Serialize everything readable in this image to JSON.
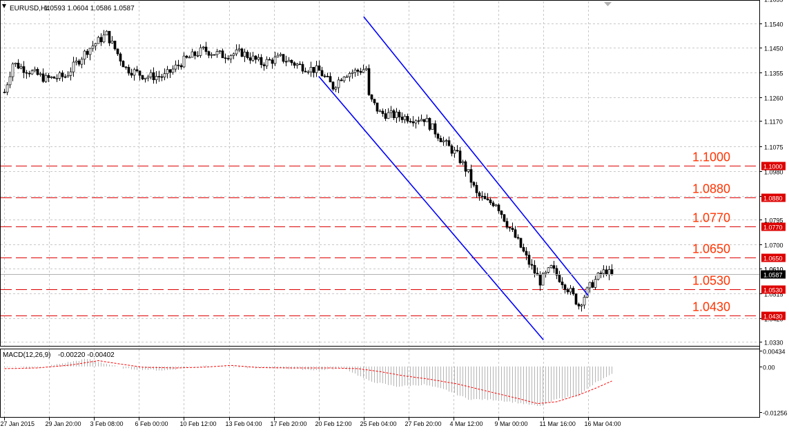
{
  "header": {
    "symbol_title": "EURUSD,H4",
    "ohlc": "1.0593 1.0604 1.0586 1.0587"
  },
  "macd": {
    "label": "MACD(12,26,9)",
    "values": "-0.00220 -0.00402",
    "axis_ticks": [
      {
        "value": 0.00434,
        "label": "0.00434"
      },
      {
        "value": 0.0,
        "label": "0.00"
      },
      {
        "value": -0.01256,
        "label": "-0.01256"
      }
    ]
  },
  "colors": {
    "background": "#ffffff",
    "grid": "#c8c8c8",
    "candles": "#000000",
    "channel": "#0000ff",
    "levels": "#dd0000",
    "level_text": "#ff3300",
    "histogram": "#b4b4b4",
    "signal": "#ff0000"
  },
  "chart_data": {
    "type": "candlestick",
    "symbol": "EURUSD",
    "timeframe": "H4",
    "ylim": [
      1.0315,
      1.1625
    ],
    "y_ticks": [
      "1.1635",
      "1.1540",
      "1.1450",
      "1.1355",
      "1.1260",
      "1.1170",
      "1.1075",
      "1.0980",
      "1.0885",
      "1.0795",
      "1.0700",
      "1.0610",
      "1.0515",
      "1.0420",
      "1.0330"
    ],
    "x_ticks": [
      "27 Jan 2015",
      "29 Jan 20:00",
      "3 Feb 08:00",
      "6 Feb 00:00",
      "10 Feb 12:00",
      "13 Feb 04:00",
      "17 Feb 20:00",
      "20 Feb 12:00",
      "25 Feb 04:00",
      "27 Feb 20:00",
      "4 Mar 12:00",
      "9 Mar 00:00",
      "11 Mar 16:00",
      "16 Mar 04:00"
    ],
    "current_price": {
      "value": 1.0587,
      "label": "1.0587"
    },
    "current_price_label2": "1.0610",
    "levels": [
      {
        "value": 1.1,
        "label": "1.1000",
        "tag": "1.1000"
      },
      {
        "value": 1.088,
        "label": "1.0880",
        "tag": "1.0880"
      },
      {
        "value": 1.077,
        "label": "1.0770",
        "tag": "1.0770"
      },
      {
        "value": 1.065,
        "label": "1.0650",
        "tag": "1.0650"
      },
      {
        "value": 1.053,
        "label": "1.0530",
        "tag": "1.0530"
      },
      {
        "value": 1.043,
        "label": "1.0430",
        "tag": "1.0430"
      }
    ],
    "channel": {
      "upper": {
        "from": [
          "25 Feb 04:00",
          1.1567
        ],
        "to": [
          "16 Mar 04:00",
          1.0506
        ]
      },
      "lower": {
        "from": [
          "20 Feb 12:00",
          1.134
        ],
        "to": [
          "11 Mar 16:00",
          1.0338
        ]
      }
    },
    "price_path": [
      [
        0,
        1.128
      ],
      [
        3,
        1.139
      ],
      [
        9,
        1.136
      ],
      [
        15,
        1.133
      ],
      [
        22,
        1.134
      ],
      [
        30,
        1.144
      ],
      [
        37,
        1.15
      ],
      [
        44,
        1.137
      ],
      [
        51,
        1.134
      ],
      [
        58,
        1.134
      ],
      [
        65,
        1.14
      ],
      [
        72,
        1.144
      ],
      [
        79,
        1.142
      ],
      [
        86,
        1.143
      ],
      [
        93,
        1.139
      ],
      [
        100,
        1.141
      ],
      [
        107,
        1.138
      ],
      [
        114,
        1.136
      ],
      [
        119,
        1.13
      ],
      [
        123,
        1.135
      ],
      [
        128,
        1.136
      ],
      [
        131,
        1.137
      ],
      [
        132,
        1.126
      ],
      [
        136,
        1.12
      ],
      [
        142,
        1.119
      ],
      [
        148,
        1.118
      ],
      [
        152,
        1.118
      ],
      [
        156,
        1.113
      ],
      [
        160,
        1.108
      ],
      [
        164,
        1.104
      ],
      [
        168,
        1.097
      ],
      [
        171,
        1.089
      ],
      [
        175,
        1.086
      ],
      [
        178,
        1.086
      ],
      [
        182,
        1.078
      ],
      [
        186,
        1.071
      ],
      [
        190,
        1.063
      ],
      [
        194,
        1.056
      ],
      [
        198,
        1.061
      ],
      [
        202,
        1.056
      ],
      [
        205,
        1.052
      ],
      [
        208,
        1.047
      ],
      [
        212,
        1.054
      ],
      [
        216,
        1.059
      ],
      [
        218,
        1.06
      ],
      [
        220,
        1.058
      ]
    ],
    "macd_histogram_path": [
      [
        0,
        0.0
      ],
      [
        12,
        -0.0004
      ],
      [
        30,
        0.0021
      ],
      [
        44,
        -0.0006
      ],
      [
        58,
        -0.0011
      ],
      [
        72,
        0.0003
      ],
      [
        86,
        -0.0003
      ],
      [
        100,
        -0.0005
      ],
      [
        114,
        -0.001
      ],
      [
        123,
        -0.0004
      ],
      [
        132,
        -0.004
      ],
      [
        142,
        -0.0055
      ],
      [
        152,
        -0.005
      ],
      [
        160,
        -0.0065
      ],
      [
        168,
        -0.009
      ],
      [
        178,
        -0.0092
      ],
      [
        186,
        -0.01
      ],
      [
        194,
        -0.011
      ],
      [
        200,
        -0.009
      ],
      [
        208,
        -0.008
      ],
      [
        214,
        -0.0045
      ],
      [
        220,
        -0.0022
      ]
    ],
    "macd_signal_path": [
      [
        0,
        -0.0006
      ],
      [
        12,
        -0.0004
      ],
      [
        24,
        0.0004
      ],
      [
        34,
        0.0016
      ],
      [
        40,
        0.0009
      ],
      [
        50,
        -0.0002
      ],
      [
        62,
        -0.0004
      ],
      [
        72,
        -0.0002
      ],
      [
        82,
        0.0003
      ],
      [
        92,
        -0.0003
      ],
      [
        104,
        -0.0004
      ],
      [
        118,
        -0.0004
      ],
      [
        128,
        -0.0006
      ],
      [
        136,
        -0.0014
      ],
      [
        144,
        -0.0025
      ],
      [
        154,
        -0.0035
      ],
      [
        164,
        -0.0048
      ],
      [
        176,
        -0.007
      ],
      [
        186,
        -0.0088
      ],
      [
        193,
        -0.0102
      ],
      [
        200,
        -0.0097
      ],
      [
        208,
        -0.0078
      ],
      [
        214,
        -0.006
      ],
      [
        220,
        -0.004
      ]
    ]
  }
}
